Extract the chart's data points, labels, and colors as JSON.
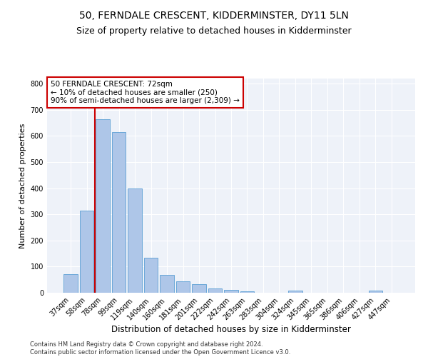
{
  "title": "50, FERNDALE CRESCENT, KIDDERMINSTER, DY11 5LN",
  "subtitle": "Size of property relative to detached houses in Kidderminster",
  "xlabel": "Distribution of detached houses by size in Kidderminster",
  "ylabel": "Number of detached properties",
  "categories": [
    "37sqm",
    "58sqm",
    "78sqm",
    "99sqm",
    "119sqm",
    "140sqm",
    "160sqm",
    "181sqm",
    "201sqm",
    "222sqm",
    "242sqm",
    "263sqm",
    "283sqm",
    "304sqm",
    "324sqm",
    "345sqm",
    "365sqm",
    "386sqm",
    "406sqm",
    "427sqm",
    "447sqm"
  ],
  "values": [
    72,
    315,
    665,
    615,
    400,
    135,
    68,
    43,
    34,
    17,
    11,
    5,
    0,
    0,
    7,
    0,
    0,
    0,
    0,
    9,
    0
  ],
  "bar_color": "#aec6e8",
  "bar_edge_color": "#5a9fd4",
  "vline_color": "#cc0000",
  "vline_x": 1.5,
  "annotation_text": "50 FERNDALE CRESCENT: 72sqm\n← 10% of detached houses are smaller (250)\n90% of semi-detached houses are larger (2,309) →",
  "annotation_box_color": "#ffffff",
  "annotation_box_edge_color": "#cc0000",
  "ylim": [
    0,
    820
  ],
  "yticks": [
    0,
    100,
    200,
    300,
    400,
    500,
    600,
    700,
    800
  ],
  "footer": "Contains HM Land Registry data © Crown copyright and database right 2024.\nContains public sector information licensed under the Open Government Licence v3.0.",
  "bg_color": "#eef2f9",
  "title_fontsize": 10,
  "subtitle_fontsize": 9,
  "tick_fontsize": 7,
  "ylabel_fontsize": 8,
  "xlabel_fontsize": 8.5,
  "annotation_fontsize": 7.5,
  "footer_fontsize": 6
}
